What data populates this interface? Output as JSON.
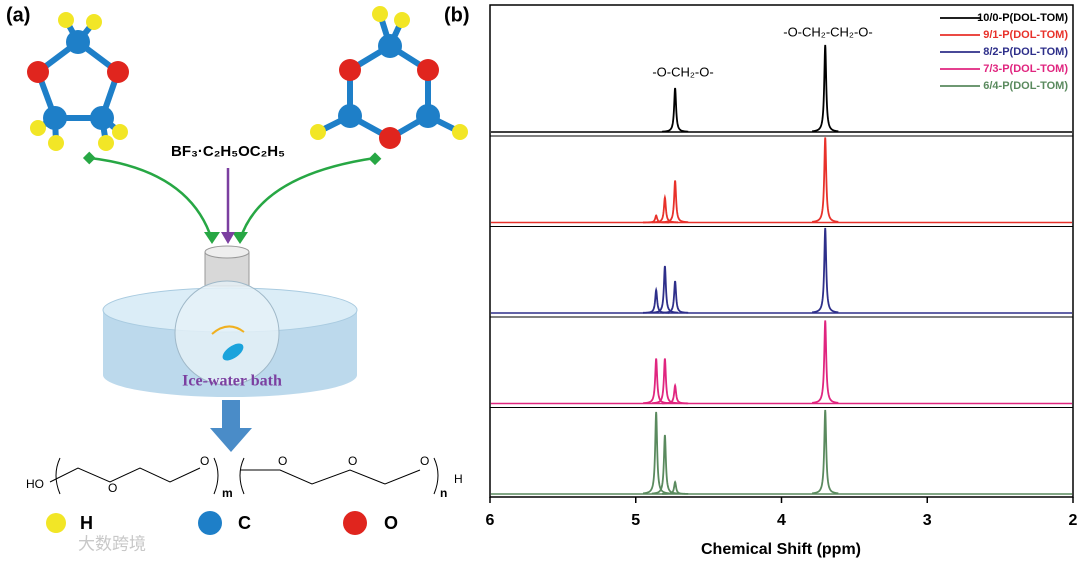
{
  "panel_a": {
    "label": "(a)",
    "catalyst": "BF₃·C₂H₅OC₂H₅",
    "bath": "Ice-water bath",
    "formula": {
      "start": "HO",
      "oxygen": "O",
      "m": "m",
      "n": "n",
      "end": "H"
    },
    "legend": [
      "H",
      "C",
      "O"
    ],
    "watermark": "大数跨境"
  },
  "chart_data": {
    "type": "line",
    "label": "(b)",
    "xlabel": "Chemical Shift (ppm)",
    "xlim": [
      6,
      2
    ],
    "xticks": [
      6,
      5,
      4,
      3,
      2
    ],
    "annotations": [
      "-O-CH₂-O-",
      "-O-CH₂-CH₂-O-"
    ],
    "series": [
      {
        "name": "10/0-P(DOL-TOM)",
        "color": "#000000",
        "x": [
          4.73,
          3.7
        ],
        "values": [
          44,
          87
        ]
      },
      {
        "name": "9/1-P(DOL-TOM)",
        "color": "#e8312a",
        "x": [
          4.86,
          4.8,
          4.73,
          3.7
        ],
        "values": [
          7,
          25,
          42,
          85
        ]
      },
      {
        "name": "8/2-P(DOL-TOM)",
        "color": "#2e2f8a",
        "x": [
          4.86,
          4.8,
          4.73,
          3.7
        ],
        "values": [
          23,
          47,
          32,
          85
        ]
      },
      {
        "name": "7/3-P(DOL-TOM)",
        "color": "#e0257f",
        "x": [
          4.86,
          4.8,
          4.73,
          3.7
        ],
        "values": [
          45,
          45,
          18,
          83
        ]
      },
      {
        "name": "6/4-P(DOL-TOM)",
        "color": "#5a8a5e",
        "x": [
          4.86,
          4.8,
          4.73,
          3.7
        ],
        "values": [
          82,
          59,
          12,
          84
        ]
      }
    ]
  }
}
